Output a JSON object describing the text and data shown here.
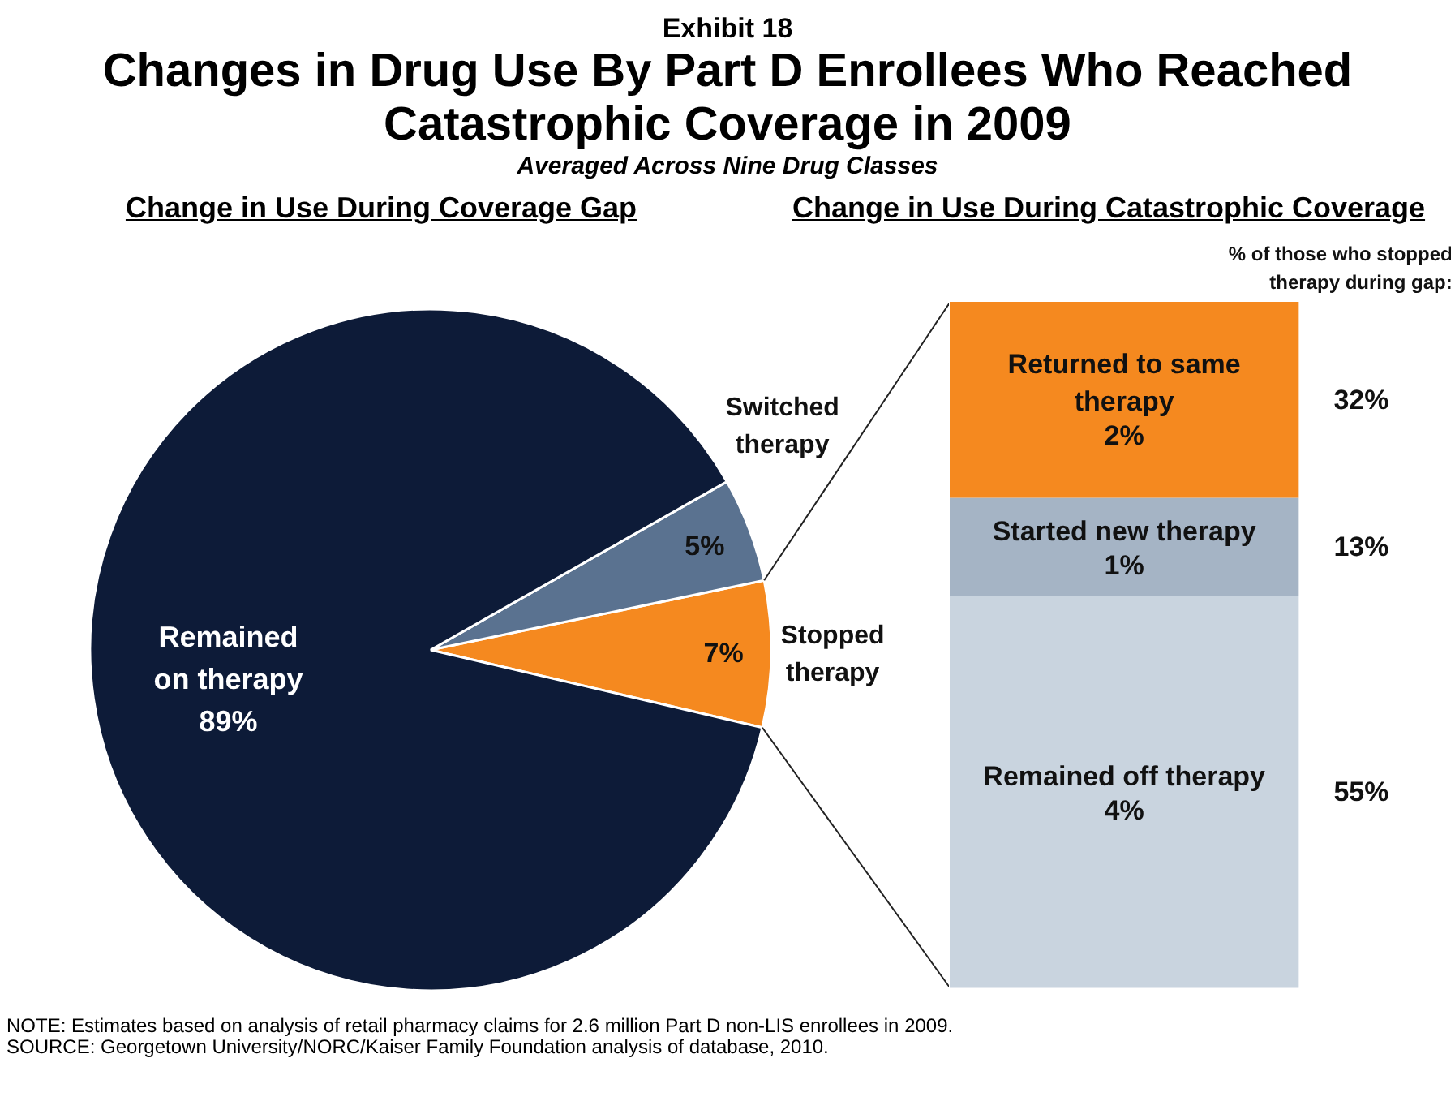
{
  "chart_data": [
    {
      "type": "other",
      "title": "Changes in Drug Use By Part D Enrollees Who Reached Catastrophic Coverage in 2009",
      "subtitle": "Averaged Across Nine Drug Classes",
      "annotations": [
        "Exhibit 18",
        "NOTE:  Estimates based on analysis of retail pharmacy claims for 2.6 million Part D non-LIS enrollees in 2009.",
        "SOURCE:  Georgetown University/NORC/Kaiser Family Foundation analysis of database, 2010."
      ]
    },
    {
      "type": "pie",
      "title": "Change in Use During Coverage Gap",
      "categories": [
        "Remained on therapy",
        "Switched therapy",
        "Stopped therapy"
      ],
      "values": [
        89,
        5,
        7
      ],
      "colors": [
        "#0d1b38",
        "#5a7290",
        "#f5891f"
      ],
      "value_labels": [
        "89%",
        "5%",
        "7%"
      ]
    },
    {
      "type": "bar",
      "title": "Change in Use During Catastrophic Coverage",
      "categories": [
        null
      ],
      "stacked": true,
      "series": [
        {
          "name": "Remained off therapy",
          "color": "#c9d4df",
          "values": [
            4
          ],
          "value_labels": [
            "4%"
          ]
        },
        {
          "name": "Started new therapy",
          "color": "#a5b4c5",
          "values": [
            1
          ],
          "value_labels": [
            "1%"
          ]
        },
        {
          "name": "Returned to same therapy",
          "color": "#f5891f",
          "values": [
            2
          ],
          "value_labels": [
            "2%"
          ]
        }
      ],
      "annotations": [
        "% of those who stopped therapy during gap:",
        "55%",
        "13%",
        "32%"
      ]
    }
  ]
}
